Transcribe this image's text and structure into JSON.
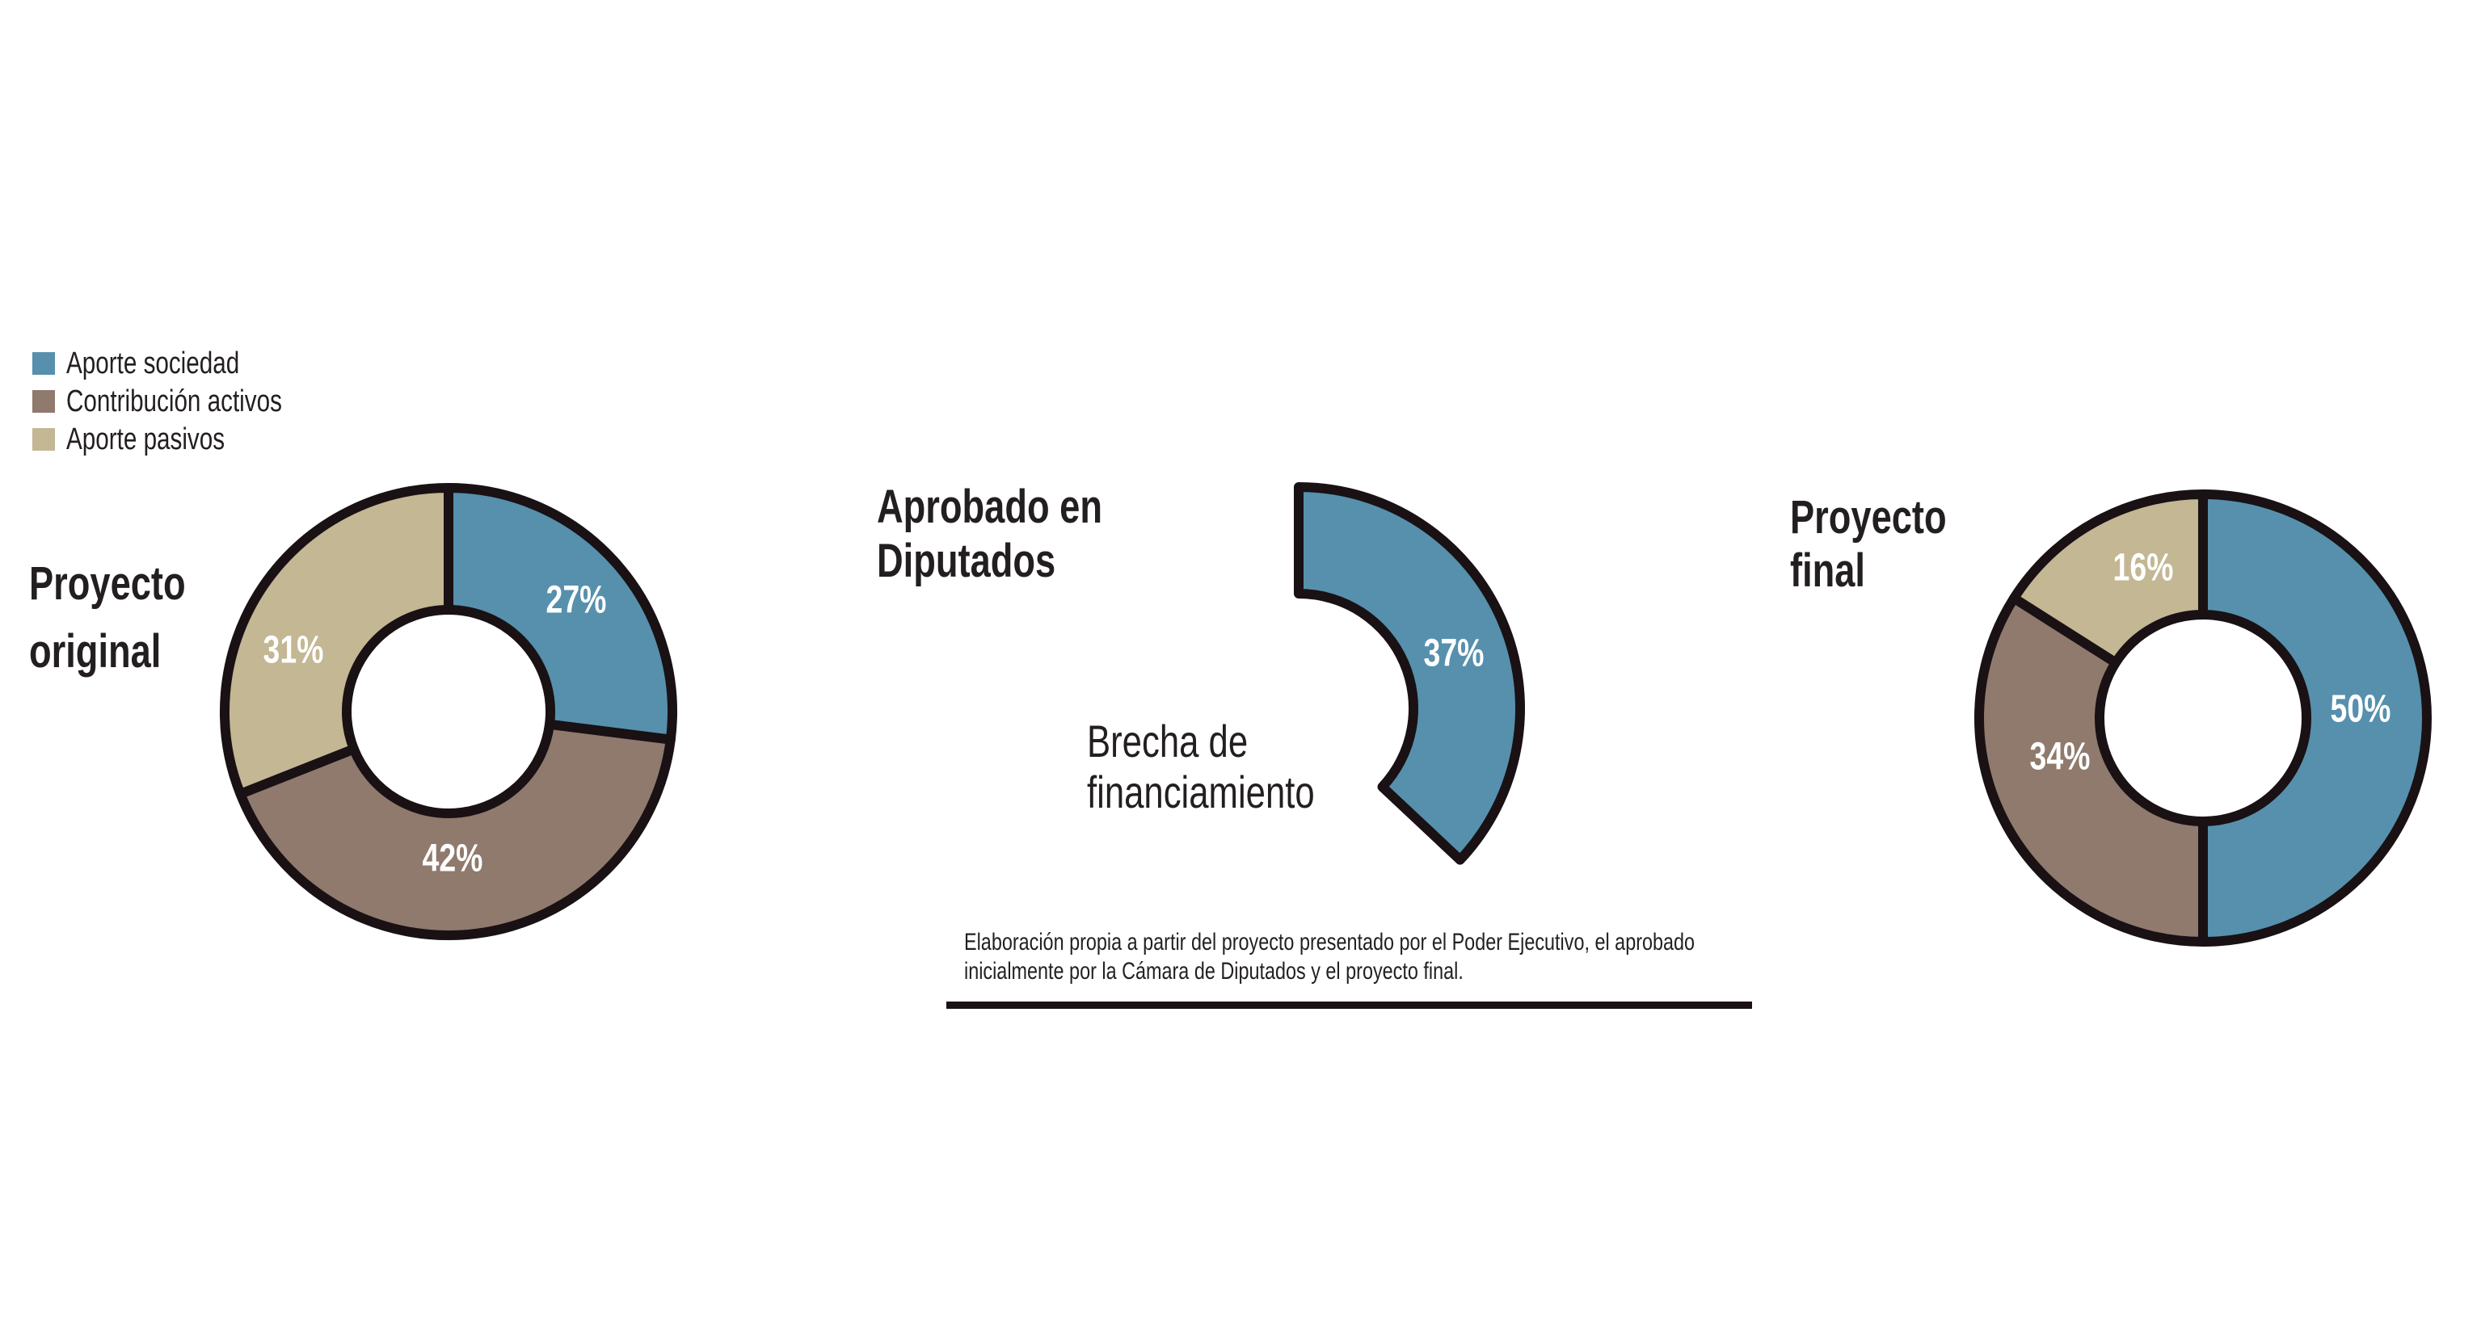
{
  "background_color": "#FFFFFF",
  "palette": {
    "blue": "#5690AC",
    "brown": "#8F7A6D",
    "tan": "#C3B794",
    "outline": "#191114",
    "text_dark": "#231F20",
    "label_white": "#FFFFFF"
  },
  "legend": {
    "items": [
      {
        "label": "Aporte sociedad",
        "color": "blue"
      },
      {
        "label": "Contribución activos",
        "color": "brown"
      },
      {
        "label": "Aporte pasivos",
        "color": "tan"
      }
    ]
  },
  "footnote": {
    "lines": [
      "Elaboración propia a partir del proyecto presentado por el Poder Ejecutivo, el aprobado",
      "inicialmente por la Cámara de Diputados y el proyecto final."
    ],
    "full_text": "Elaboración propia a partir del proyecto presentado por el Poder Ejecutivo, el aprobado inicialmente por la Cámara de Diputados y el proyecto final."
  },
  "chart_data": [
    {
      "id": "proyecto-original",
      "type": "pie",
      "subtype": "donut",
      "title": "Proyecto original",
      "title_lines": [
        "Proyecto",
        "original"
      ],
      "direction": "clockwise",
      "start_angle_deg": 0,
      "categories": [
        "Aporte sociedad",
        "Contribución activos",
        "Aporte pasivos"
      ],
      "values": [
        27,
        42,
        31
      ],
      "labels": [
        "27%",
        "42%",
        "31%"
      ],
      "slice_colors": [
        "blue",
        "brown",
        "tan"
      ]
    },
    {
      "id": "aprobado-en-diputados",
      "type": "pie",
      "subtype": "donut-partial",
      "title": "Aprobado en Diputados",
      "title_lines": [
        "Aprobado en",
        "Diputados"
      ],
      "direction": "clockwise",
      "start_angle_deg": 0,
      "categories": [
        "Aporte sociedad"
      ],
      "values": [
        37
      ],
      "labels": [
        "37%"
      ],
      "slice_colors": [
        "blue"
      ],
      "gap": {
        "value": 63,
        "label": "Brecha de financiamiento",
        "label_lines": [
          "Brecha de",
          "financiamiento"
        ]
      }
    },
    {
      "id": "proyecto-final",
      "type": "pie",
      "subtype": "donut",
      "title": "Proyecto final",
      "title_lines": [
        "Proyecto",
        "final"
      ],
      "direction": "clockwise",
      "start_angle_deg": 0,
      "categories": [
        "Aporte sociedad",
        "Contribución activos",
        "Aporte pasivos"
      ],
      "values": [
        50,
        34,
        16
      ],
      "labels": [
        "50%",
        "34%",
        "16%"
      ],
      "slice_colors": [
        "blue",
        "brown",
        "tan"
      ]
    }
  ]
}
